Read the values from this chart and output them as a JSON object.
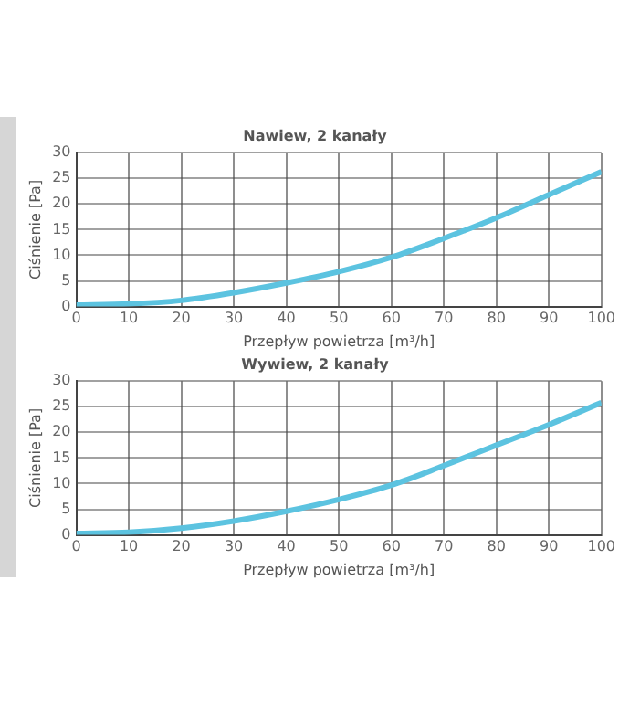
{
  "chart_data": [
    {
      "type": "line",
      "title": "Nawiew, 2 kanały",
      "xlabel": "Przepływ powietrza [m³/h]",
      "ylabel": "Ciśnienie [Pa]",
      "x": [
        0,
        10,
        20,
        30,
        40,
        50,
        60,
        70,
        80,
        90,
        100
      ],
      "series": [
        {
          "color": "#5cc3e0",
          "values": [
            0.3,
            0.5,
            1.2,
            2.7,
            4.6,
            6.8,
            9.6,
            13.3,
            17.3,
            21.8,
            26.3
          ]
        }
      ],
      "xlim": [
        0,
        100
      ],
      "xticks": [
        0,
        10,
        20,
        30,
        40,
        50,
        60,
        70,
        80,
        90,
        100
      ],
      "ylim": [
        0,
        30
      ],
      "yticks": [
        0,
        5,
        10,
        15,
        20,
        25,
        30
      ],
      "grid": true,
      "marker": "none"
    },
    {
      "type": "line",
      "title": "Wywiew, 2 kanały",
      "xlabel": "Przepływ powietrza [m³/h]",
      "ylabel": "Ciśnienie [Pa]",
      "x": [
        0,
        10,
        20,
        30,
        40,
        50,
        60,
        70,
        80,
        90,
        100
      ],
      "series": [
        {
          "color": "#5cc3e0",
          "values": [
            0.3,
            0.5,
            1.3,
            2.7,
            4.6,
            6.9,
            9.7,
            13.5,
            17.5,
            21.5,
            25.8
          ]
        }
      ],
      "xlim": [
        0,
        100
      ],
      "xticks": [
        0,
        10,
        20,
        30,
        40,
        50,
        60,
        70,
        80,
        90,
        100
      ],
      "ylim": [
        0,
        30
      ],
      "yticks": [
        0,
        5,
        10,
        15,
        20,
        25,
        30
      ],
      "grid": true,
      "marker": "none"
    }
  ]
}
